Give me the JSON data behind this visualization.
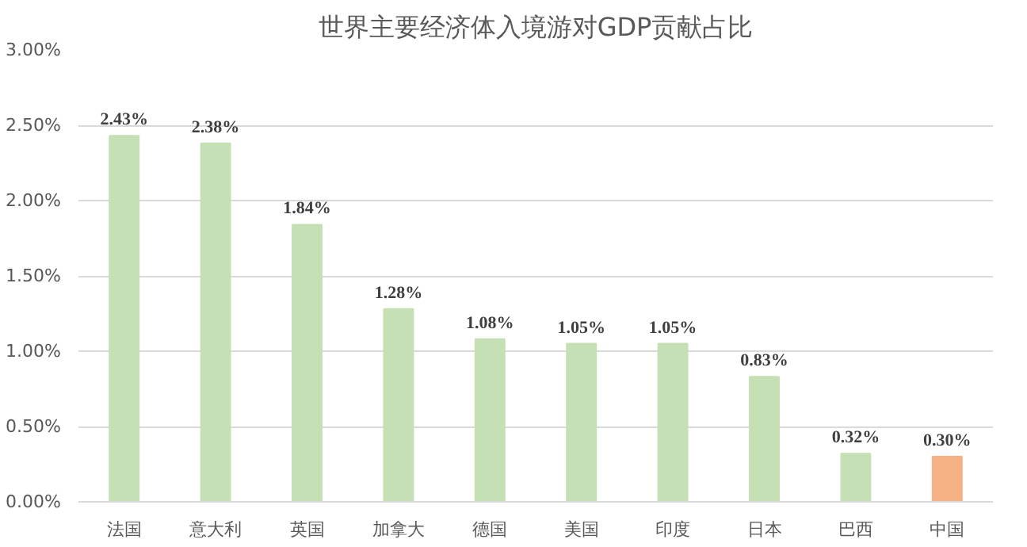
{
  "chart_data": {
    "type": "bar",
    "title": "世界主要经济体入境游对GDP贡献占比",
    "categories": [
      "法国",
      "意大利",
      "英国",
      "加拿大",
      "德国",
      "美国",
      "印度",
      "日本",
      "巴西",
      "中国"
    ],
    "values": [
      2.43,
      2.38,
      1.84,
      1.28,
      1.08,
      1.05,
      1.05,
      0.83,
      0.32,
      0.3
    ],
    "colors": [
      "#c5e0b4",
      "#c5e0b4",
      "#c5e0b4",
      "#c5e0b4",
      "#c5e0b4",
      "#c5e0b4",
      "#c5e0b4",
      "#c5e0b4",
      "#c5e0b4",
      "#f4b183"
    ],
    "value_labels": [
      "2.43%",
      "2.38%",
      "1.84%",
      "1.28%",
      "1.08%",
      "1.05%",
      "1.05%",
      "0.83%",
      "0.32%",
      "0.30%"
    ],
    "ylim": [
      0,
      3
    ],
    "yticks": [
      {
        "value": 0,
        "label": "0.00%"
      },
      {
        "value": 0.5,
        "label": "0.50%"
      },
      {
        "value": 1,
        "label": "1.00%"
      },
      {
        "value": 1.5,
        "label": "1.50%"
      },
      {
        "value": 2,
        "label": "2.00%"
      },
      {
        "value": 2.5,
        "label": "2.50%"
      },
      {
        "value": 3,
        "label": "3.00%"
      }
    ],
    "grid": "y"
  }
}
